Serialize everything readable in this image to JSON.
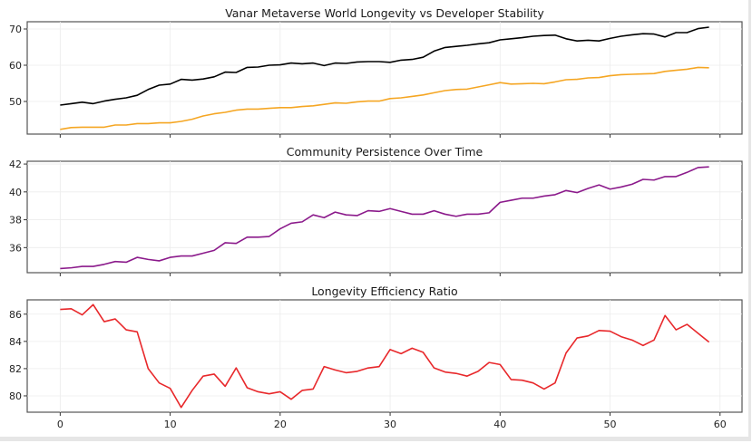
{
  "chart_data": [
    {
      "type": "line",
      "title": "Vanar Metaverse World Longevity vs Developer Stability",
      "xlabel": "",
      "ylabel": "",
      "xlim": [
        -3,
        62
      ],
      "ylim": [
        41,
        72
      ],
      "xticks": [
        0,
        10,
        20,
        30,
        40,
        50,
        60
      ],
      "xtick_labels_visible": false,
      "yticks": [
        50,
        60,
        70
      ],
      "ytick_labels": [
        "50",
        "60",
        "70"
      ],
      "grid": true,
      "legend": "none",
      "x": [
        0,
        1,
        2,
        3,
        4,
        5,
        6,
        7,
        8,
        9,
        10,
        11,
        12,
        13,
        14,
        15,
        16,
        17,
        18,
        19,
        20,
        21,
        22,
        23,
        24,
        25,
        26,
        27,
        28,
        29,
        30,
        31,
        32,
        33,
        34,
        35,
        36,
        37,
        38,
        39,
        40,
        41,
        42,
        43,
        44,
        45,
        46,
        47,
        48,
        49,
        50,
        51,
        52,
        53,
        54,
        55,
        56,
        57,
        58,
        59
      ],
      "series": [
        {
          "name": "World Longevity",
          "color": "#000000",
          "values": [
            49.0,
            49.4,
            49.8,
            49.4,
            50.1,
            50.6,
            51.0,
            51.7,
            53.3,
            54.5,
            54.8,
            56.1,
            55.9,
            56.2,
            56.8,
            58.1,
            58.0,
            59.4,
            59.5,
            60.0,
            60.1,
            60.6,
            60.4,
            60.6,
            59.9,
            60.6,
            60.5,
            60.9,
            61.0,
            61.0,
            60.8,
            61.4,
            61.6,
            62.2,
            63.9,
            64.9,
            65.2,
            65.5,
            65.9,
            66.2,
            67.0,
            67.3,
            67.6,
            68.0,
            68.2,
            68.3,
            67.3,
            66.7,
            66.9,
            66.7,
            67.4,
            68.0,
            68.4,
            68.7,
            68.6,
            67.8,
            69.0,
            69.0,
            70.1,
            70.5
          ]
        },
        {
          "name": "Developer Stability",
          "color": "#f5a623",
          "values": [
            42.3,
            42.8,
            42.9,
            42.9,
            42.9,
            43.5,
            43.5,
            43.9,
            43.9,
            44.1,
            44.1,
            44.5,
            45.1,
            46.0,
            46.6,
            47.0,
            47.6,
            47.9,
            47.9,
            48.1,
            48.3,
            48.3,
            48.6,
            48.8,
            49.2,
            49.6,
            49.5,
            49.9,
            50.1,
            50.1,
            50.8,
            51.0,
            51.4,
            51.8,
            52.4,
            53.0,
            53.3,
            53.4,
            54.0,
            54.6,
            55.2,
            54.8,
            54.9,
            55.0,
            54.9,
            55.4,
            56.0,
            56.1,
            56.5,
            56.6,
            57.1,
            57.4,
            57.5,
            57.6,
            57.7,
            58.3,
            58.6,
            58.9,
            59.4,
            59.3
          ]
        }
      ]
    },
    {
      "type": "line",
      "title": "Community Persistence Over Time",
      "xlabel": "",
      "ylabel": "",
      "xlim": [
        -3,
        62
      ],
      "ylim": [
        34.2,
        42.2
      ],
      "xticks": [
        0,
        10,
        20,
        30,
        40,
        50,
        60
      ],
      "xtick_labels_visible": false,
      "yticks": [
        36,
        38,
        40,
        42
      ],
      "ytick_labels": [
        "36",
        "38",
        "40",
        "42"
      ],
      "grid": true,
      "legend": "none",
      "x": [
        0,
        1,
        2,
        3,
        4,
        5,
        6,
        7,
        8,
        9,
        10,
        11,
        12,
        13,
        14,
        15,
        16,
        17,
        18,
        19,
        20,
        21,
        22,
        23,
        24,
        25,
        26,
        27,
        28,
        29,
        30,
        31,
        32,
        33,
        34,
        35,
        36,
        37,
        38,
        39,
        40,
        41,
        42,
        43,
        44,
        45,
        46,
        47,
        48,
        49,
        50,
        51,
        52,
        53,
        54,
        55,
        56,
        57,
        58,
        59
      ],
      "series": [
        {
          "name": "Community Persistence",
          "color": "#8b1a8b",
          "values": [
            34.5,
            34.55,
            34.65,
            34.65,
            34.8,
            35.0,
            34.95,
            35.3,
            35.15,
            35.05,
            35.3,
            35.4,
            35.4,
            35.6,
            35.8,
            36.35,
            36.3,
            36.75,
            36.75,
            36.8,
            37.35,
            37.75,
            37.85,
            38.35,
            38.15,
            38.55,
            38.35,
            38.3,
            38.65,
            38.6,
            38.8,
            38.6,
            38.4,
            38.4,
            38.65,
            38.4,
            38.25,
            38.4,
            38.4,
            38.5,
            39.25,
            39.4,
            39.55,
            39.55,
            39.7,
            39.8,
            40.1,
            39.95,
            40.25,
            40.5,
            40.2,
            40.35,
            40.55,
            40.9,
            40.85,
            41.1,
            41.1,
            41.4,
            41.75,
            41.8
          ]
        }
      ]
    },
    {
      "type": "line",
      "title": "Longevity Efficiency Ratio",
      "xlabel": "",
      "ylabel": "",
      "xlim": [
        -3,
        62
      ],
      "ylim": [
        78.8,
        87.05
      ],
      "xticks": [
        0,
        10,
        20,
        30,
        40,
        50,
        60
      ],
      "xtick_labels": [
        "0",
        "10",
        "20",
        "30",
        "40",
        "50",
        "60"
      ],
      "xtick_labels_visible": true,
      "yticks": [
        80,
        82,
        84,
        86
      ],
      "ytick_labels": [
        "80",
        "82",
        "84",
        "86"
      ],
      "grid": true,
      "legend": "none",
      "x": [
        0,
        1,
        2,
        3,
        4,
        5,
        6,
        7,
        8,
        9,
        10,
        11,
        12,
        13,
        14,
        15,
        16,
        17,
        18,
        19,
        20,
        21,
        22,
        23,
        24,
        25,
        26,
        27,
        28,
        29,
        30,
        31,
        32,
        33,
        34,
        35,
        36,
        37,
        38,
        39,
        40,
        41,
        42,
        43,
        44,
        45,
        46,
        47,
        48,
        49,
        50,
        51,
        52,
        53,
        54,
        55,
        56,
        57,
        58,
        59
      ],
      "series": [
        {
          "name": "Longevity Efficiency Ratio",
          "color": "#e8282b",
          "values": [
            86.35,
            86.4,
            85.95,
            86.7,
            85.45,
            85.65,
            84.85,
            84.7,
            82.0,
            80.95,
            80.55,
            79.15,
            80.4,
            81.45,
            81.6,
            80.7,
            82.05,
            80.6,
            80.3,
            80.15,
            80.3,
            79.75,
            80.4,
            80.5,
            82.15,
            81.9,
            81.7,
            81.8,
            82.05,
            82.15,
            83.4,
            83.1,
            83.5,
            83.2,
            82.05,
            81.75,
            81.65,
            81.45,
            81.8,
            82.45,
            82.3,
            81.2,
            81.15,
            80.95,
            80.5,
            80.95,
            83.15,
            84.25,
            84.4,
            84.8,
            84.75,
            84.35,
            84.1,
            83.7,
            84.1,
            85.9,
            84.85,
            85.25,
            84.6,
            83.95
          ]
        }
      ]
    }
  ]
}
